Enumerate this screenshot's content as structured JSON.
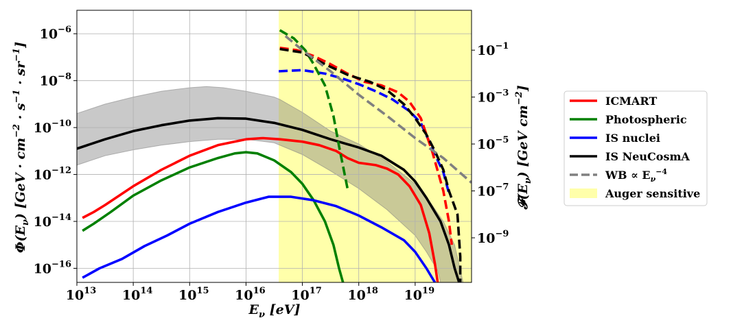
{
  "chart_data": {
    "type": "line",
    "title": "",
    "xlabel": "E_ν [eV]",
    "ylabel_left": "Φ(E_ν) [GeV · cm^-2 · s^-1 · sr^-1]",
    "ylabel_right": "𝓕(E_ν) [GeV cm^-2]",
    "x_scale": "log",
    "xlim_log10": [
      13,
      20.0
    ],
    "ylim_left_log10": [
      -16.6,
      -5.0
    ],
    "ylim_right_log10": [
      -10.9,
      0.7
    ],
    "grid": true,
    "x_ticks": [
      {
        "exp": 13,
        "label": "10",
        "sup": "13"
      },
      {
        "exp": 14,
        "label": "10",
        "sup": "14"
      },
      {
        "exp": 15,
        "label": "10",
        "sup": "15"
      },
      {
        "exp": 16,
        "label": "10",
        "sup": "16"
      },
      {
        "exp": 17,
        "label": "10",
        "sup": "17"
      },
      {
        "exp": 18,
        "label": "10",
        "sup": "18"
      },
      {
        "exp": 19,
        "label": "10",
        "sup": "19"
      }
    ],
    "y_left_ticks": [
      {
        "exp": -6,
        "label": "10",
        "sup": "−6"
      },
      {
        "exp": -8,
        "label": "10",
        "sup": "−8"
      },
      {
        "exp": -10,
        "label": "10",
        "sup": "−10"
      },
      {
        "exp": -12,
        "label": "10",
        "sup": "−12"
      },
      {
        "exp": -14,
        "label": "10",
        "sup": "−14"
      },
      {
        "exp": -16,
        "label": "10",
        "sup": "−16"
      }
    ],
    "y_right_ticks": [
      {
        "exp": -1,
        "label": "10",
        "sup": "−1"
      },
      {
        "exp": -3,
        "label": "10",
        "sup": "−3"
      },
      {
        "exp": -5,
        "label": "10",
        "sup": "−5"
      },
      {
        "exp": -7,
        "label": "10",
        "sup": "−7"
      },
      {
        "exp": -9,
        "label": "10",
        "sup": "−9"
      }
    ],
    "shaded_regions": [
      {
        "name": "Auger sensitive",
        "color": "#ffffaa",
        "x_from_log10": 16.58,
        "x_to_log10": 20.0
      }
    ],
    "bands": [
      {
        "name": "IS NeuCosmA uncertainty",
        "color": "#7f7f7f",
        "upper": [
          [
            13.0,
            -9.4
          ],
          [
            13.5,
            -9.0
          ],
          [
            14.0,
            -8.7
          ],
          [
            14.5,
            -8.45
          ],
          [
            15.0,
            -8.3
          ],
          [
            15.3,
            -8.25
          ],
          [
            15.6,
            -8.3
          ],
          [
            16.0,
            -8.45
          ],
          [
            16.5,
            -8.7
          ],
          [
            16.6,
            -8.8
          ],
          [
            17.0,
            -9.35
          ],
          [
            17.5,
            -10.15
          ],
          [
            18.0,
            -10.7
          ],
          [
            18.5,
            -11.45
          ],
          [
            19.0,
            -12.4
          ],
          [
            19.3,
            -13.3
          ],
          [
            19.5,
            -14.0
          ],
          [
            19.7,
            -15.0
          ],
          [
            19.85,
            -16.6
          ]
        ],
        "lower": [
          [
            13.0,
            -11.6
          ],
          [
            13.5,
            -11.2
          ],
          [
            14.0,
            -10.95
          ],
          [
            14.5,
            -10.75
          ],
          [
            15.0,
            -10.6
          ],
          [
            15.5,
            -10.5
          ],
          [
            16.0,
            -10.5
          ],
          [
            16.5,
            -10.65
          ],
          [
            17.0,
            -11.15
          ],
          [
            17.5,
            -11.85
          ],
          [
            18.0,
            -12.6
          ],
          [
            18.5,
            -13.5
          ],
          [
            19.0,
            -14.6
          ],
          [
            19.2,
            -15.3
          ],
          [
            19.4,
            -16.1
          ],
          [
            19.45,
            -16.6
          ]
        ]
      }
    ],
    "series": [
      {
        "name": "ICMART",
        "color": "#ff0000",
        "values": [
          [
            13.1,
            -13.85
          ],
          [
            13.3,
            -13.6
          ],
          [
            13.5,
            -13.3
          ],
          [
            14.0,
            -12.5
          ],
          [
            14.5,
            -11.8
          ],
          [
            15.0,
            -11.2
          ],
          [
            15.5,
            -10.75
          ],
          [
            16.0,
            -10.5
          ],
          [
            16.3,
            -10.45
          ],
          [
            16.6,
            -10.5
          ],
          [
            17.0,
            -10.6
          ],
          [
            17.3,
            -10.75
          ],
          [
            17.6,
            -11.0
          ],
          [
            17.8,
            -11.3
          ],
          [
            18.0,
            -11.5
          ],
          [
            18.3,
            -11.6
          ],
          [
            18.5,
            -11.75
          ],
          [
            18.7,
            -12.0
          ],
          [
            18.9,
            -12.5
          ],
          [
            19.1,
            -13.3
          ],
          [
            19.25,
            -14.5
          ],
          [
            19.35,
            -15.8
          ],
          [
            19.4,
            -16.6
          ]
        ]
      },
      {
        "name": "Photospheric",
        "color": "#008000",
        "values": [
          [
            13.1,
            -14.4
          ],
          [
            13.3,
            -14.1
          ],
          [
            13.6,
            -13.6
          ],
          [
            14.0,
            -12.9
          ],
          [
            14.5,
            -12.25
          ],
          [
            15.0,
            -11.7
          ],
          [
            15.5,
            -11.3
          ],
          [
            15.8,
            -11.1
          ],
          [
            16.0,
            -11.05
          ],
          [
            16.2,
            -11.1
          ],
          [
            16.5,
            -11.4
          ],
          [
            16.8,
            -11.9
          ],
          [
            17.0,
            -12.4
          ],
          [
            17.2,
            -13.1
          ],
          [
            17.4,
            -14.0
          ],
          [
            17.55,
            -15.0
          ],
          [
            17.65,
            -16.0
          ],
          [
            17.72,
            -16.6
          ]
        ]
      },
      {
        "name": "IS nuclei",
        "color": "#0000ff",
        "values": [
          [
            13.1,
            -16.4
          ],
          [
            13.4,
            -16.0
          ],
          [
            13.8,
            -15.6
          ],
          [
            14.2,
            -15.05
          ],
          [
            14.6,
            -14.6
          ],
          [
            15.0,
            -14.1
          ],
          [
            15.5,
            -13.6
          ],
          [
            16.0,
            -13.2
          ],
          [
            16.4,
            -12.95
          ],
          [
            16.8,
            -12.95
          ],
          [
            17.2,
            -13.1
          ],
          [
            17.6,
            -13.35
          ],
          [
            18.0,
            -13.75
          ],
          [
            18.4,
            -14.25
          ],
          [
            18.8,
            -14.8
          ],
          [
            19.0,
            -15.3
          ],
          [
            19.2,
            -16.0
          ],
          [
            19.35,
            -16.6
          ]
        ]
      },
      {
        "name": "IS NeuCosmA",
        "color": "#000000",
        "values": [
          [
            13.0,
            -10.9
          ],
          [
            13.5,
            -10.5
          ],
          [
            14.0,
            -10.15
          ],
          [
            14.5,
            -9.9
          ],
          [
            15.0,
            -9.7
          ],
          [
            15.5,
            -9.6
          ],
          [
            16.0,
            -9.62
          ],
          [
            16.5,
            -9.8
          ],
          [
            17.0,
            -10.1
          ],
          [
            17.5,
            -10.5
          ],
          [
            18.0,
            -10.85
          ],
          [
            18.4,
            -11.2
          ],
          [
            18.8,
            -11.8
          ],
          [
            19.0,
            -12.3
          ],
          [
            19.2,
            -13.0
          ],
          [
            19.45,
            -14.0
          ],
          [
            19.6,
            -15.0
          ],
          [
            19.7,
            -16.0
          ],
          [
            19.78,
            -16.6
          ]
        ]
      },
      {
        "name": "IS nuclei (dashed)",
        "color": "#0000ff",
        "dashed": true,
        "axis": "left",
        "values": [
          [
            16.58,
            -7.6
          ],
          [
            17.0,
            -7.55
          ],
          [
            17.4,
            -7.7
          ],
          [
            17.7,
            -7.9
          ],
          [
            18.0,
            -8.15
          ],
          [
            18.3,
            -8.45
          ],
          [
            18.6,
            -8.8
          ],
          [
            18.9,
            -9.3
          ],
          [
            19.1,
            -9.8
          ],
          [
            19.25,
            -10.6
          ],
          [
            19.4,
            -11.4
          ],
          [
            19.5,
            -11.9
          ],
          [
            19.6,
            -12.8
          ]
        ]
      },
      {
        "name": "ICMART (dashed)",
        "color": "#ff0000",
        "dashed": true,
        "axis": "left",
        "values": [
          [
            16.6,
            -6.6
          ],
          [
            16.9,
            -6.7
          ],
          [
            17.2,
            -6.95
          ],
          [
            17.5,
            -7.3
          ],
          [
            17.8,
            -7.7
          ],
          [
            18.1,
            -8.05
          ],
          [
            18.4,
            -8.2
          ],
          [
            18.7,
            -8.5
          ],
          [
            18.9,
            -8.9
          ],
          [
            19.1,
            -9.6
          ],
          [
            19.3,
            -11.0
          ],
          [
            19.5,
            -12.7
          ],
          [
            19.6,
            -14.0
          ],
          [
            19.65,
            -15.0
          ]
        ]
      },
      {
        "name": "Photospheric (dashed)",
        "color": "#008000",
        "dashed": true,
        "axis": "left",
        "values": [
          [
            16.6,
            -5.85
          ],
          [
            16.85,
            -6.2
          ],
          [
            17.05,
            -6.7
          ],
          [
            17.2,
            -7.3
          ],
          [
            17.4,
            -8.2
          ],
          [
            17.55,
            -9.5
          ],
          [
            17.65,
            -10.8
          ],
          [
            17.75,
            -12.0
          ],
          [
            17.8,
            -12.6
          ]
        ]
      },
      {
        "name": "IS NeuCosmA (dashed)",
        "color": "#000000",
        "dashed": true,
        "axis": "left",
        "values": [
          [
            16.6,
            -6.65
          ],
          [
            17.0,
            -6.8
          ],
          [
            17.4,
            -7.3
          ],
          [
            17.8,
            -7.75
          ],
          [
            18.2,
            -8.05
          ],
          [
            18.5,
            -8.4
          ],
          [
            18.8,
            -9.0
          ],
          [
            19.0,
            -9.6
          ],
          [
            19.2,
            -10.3
          ],
          [
            19.35,
            -11.0
          ],
          [
            19.5,
            -11.8
          ],
          [
            19.6,
            -12.7
          ],
          [
            19.75,
            -13.7
          ],
          [
            19.8,
            -15.5
          ],
          [
            19.8,
            -16.6
          ]
        ]
      },
      {
        "name": "WB ∝ E_ν^-4",
        "color": "#808080",
        "dashed": true,
        "axis": "left",
        "values": [
          [
            16.7,
            -6.1
          ],
          [
            17.0,
            -6.7
          ],
          [
            17.5,
            -7.6
          ],
          [
            18.0,
            -8.6
          ],
          [
            18.5,
            -9.5
          ],
          [
            19.0,
            -10.45
          ],
          [
            19.5,
            -11.3
          ],
          [
            20.0,
            -12.35
          ]
        ]
      }
    ],
    "legend": {
      "placement": "right, outside",
      "entries": [
        {
          "label": "ICMART",
          "color": "#ff0000",
          "style": "solid"
        },
        {
          "label": "Photospheric",
          "color": "#008000",
          "style": "solid"
        },
        {
          "label": "IS nuclei",
          "color": "#0000ff",
          "style": "solid"
        },
        {
          "label": "IS NeuCosmA",
          "color": "#000000",
          "style": "solid"
        },
        {
          "label": "WB ∝ E",
          "label_sub": "ν",
          "label_sup": "−4",
          "color": "#808080",
          "style": "dashed"
        },
        {
          "label": "Auger sensitive",
          "color": "#ffffaa",
          "style": "patch"
        }
      ]
    }
  }
}
